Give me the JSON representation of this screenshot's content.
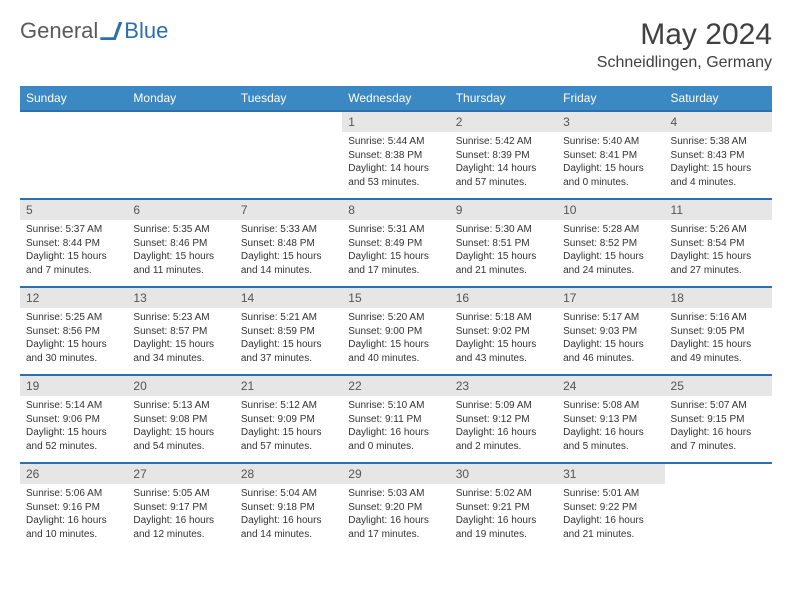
{
  "logo": {
    "general": "General",
    "blue": "Blue"
  },
  "title": "May 2024",
  "location": "Schneidlingen, Germany",
  "colors": {
    "header_bg": "#3b88c3",
    "header_text": "#ffffff",
    "border": "#2b6fad",
    "daynum_bg": "#e6e6e6",
    "text": "#333333"
  },
  "weekdays": [
    "Sunday",
    "Monday",
    "Tuesday",
    "Wednesday",
    "Thursday",
    "Friday",
    "Saturday"
  ],
  "weeks": [
    [
      {
        "n": "",
        "t": ""
      },
      {
        "n": "",
        "t": ""
      },
      {
        "n": "",
        "t": ""
      },
      {
        "n": "1",
        "t": "Sunrise: 5:44 AM\nSunset: 8:38 PM\nDaylight: 14 hours and 53 minutes."
      },
      {
        "n": "2",
        "t": "Sunrise: 5:42 AM\nSunset: 8:39 PM\nDaylight: 14 hours and 57 minutes."
      },
      {
        "n": "3",
        "t": "Sunrise: 5:40 AM\nSunset: 8:41 PM\nDaylight: 15 hours and 0 minutes."
      },
      {
        "n": "4",
        "t": "Sunrise: 5:38 AM\nSunset: 8:43 PM\nDaylight: 15 hours and 4 minutes."
      }
    ],
    [
      {
        "n": "5",
        "t": "Sunrise: 5:37 AM\nSunset: 8:44 PM\nDaylight: 15 hours and 7 minutes."
      },
      {
        "n": "6",
        "t": "Sunrise: 5:35 AM\nSunset: 8:46 PM\nDaylight: 15 hours and 11 minutes."
      },
      {
        "n": "7",
        "t": "Sunrise: 5:33 AM\nSunset: 8:48 PM\nDaylight: 15 hours and 14 minutes."
      },
      {
        "n": "8",
        "t": "Sunrise: 5:31 AM\nSunset: 8:49 PM\nDaylight: 15 hours and 17 minutes."
      },
      {
        "n": "9",
        "t": "Sunrise: 5:30 AM\nSunset: 8:51 PM\nDaylight: 15 hours and 21 minutes."
      },
      {
        "n": "10",
        "t": "Sunrise: 5:28 AM\nSunset: 8:52 PM\nDaylight: 15 hours and 24 minutes."
      },
      {
        "n": "11",
        "t": "Sunrise: 5:26 AM\nSunset: 8:54 PM\nDaylight: 15 hours and 27 minutes."
      }
    ],
    [
      {
        "n": "12",
        "t": "Sunrise: 5:25 AM\nSunset: 8:56 PM\nDaylight: 15 hours and 30 minutes."
      },
      {
        "n": "13",
        "t": "Sunrise: 5:23 AM\nSunset: 8:57 PM\nDaylight: 15 hours and 34 minutes."
      },
      {
        "n": "14",
        "t": "Sunrise: 5:21 AM\nSunset: 8:59 PM\nDaylight: 15 hours and 37 minutes."
      },
      {
        "n": "15",
        "t": "Sunrise: 5:20 AM\nSunset: 9:00 PM\nDaylight: 15 hours and 40 minutes."
      },
      {
        "n": "16",
        "t": "Sunrise: 5:18 AM\nSunset: 9:02 PM\nDaylight: 15 hours and 43 minutes."
      },
      {
        "n": "17",
        "t": "Sunrise: 5:17 AM\nSunset: 9:03 PM\nDaylight: 15 hours and 46 minutes."
      },
      {
        "n": "18",
        "t": "Sunrise: 5:16 AM\nSunset: 9:05 PM\nDaylight: 15 hours and 49 minutes."
      }
    ],
    [
      {
        "n": "19",
        "t": "Sunrise: 5:14 AM\nSunset: 9:06 PM\nDaylight: 15 hours and 52 minutes."
      },
      {
        "n": "20",
        "t": "Sunrise: 5:13 AM\nSunset: 9:08 PM\nDaylight: 15 hours and 54 minutes."
      },
      {
        "n": "21",
        "t": "Sunrise: 5:12 AM\nSunset: 9:09 PM\nDaylight: 15 hours and 57 minutes."
      },
      {
        "n": "22",
        "t": "Sunrise: 5:10 AM\nSunset: 9:11 PM\nDaylight: 16 hours and 0 minutes."
      },
      {
        "n": "23",
        "t": "Sunrise: 5:09 AM\nSunset: 9:12 PM\nDaylight: 16 hours and 2 minutes."
      },
      {
        "n": "24",
        "t": "Sunrise: 5:08 AM\nSunset: 9:13 PM\nDaylight: 16 hours and 5 minutes."
      },
      {
        "n": "25",
        "t": "Sunrise: 5:07 AM\nSunset: 9:15 PM\nDaylight: 16 hours and 7 minutes."
      }
    ],
    [
      {
        "n": "26",
        "t": "Sunrise: 5:06 AM\nSunset: 9:16 PM\nDaylight: 16 hours and 10 minutes."
      },
      {
        "n": "27",
        "t": "Sunrise: 5:05 AM\nSunset: 9:17 PM\nDaylight: 16 hours and 12 minutes."
      },
      {
        "n": "28",
        "t": "Sunrise: 5:04 AM\nSunset: 9:18 PM\nDaylight: 16 hours and 14 minutes."
      },
      {
        "n": "29",
        "t": "Sunrise: 5:03 AM\nSunset: 9:20 PM\nDaylight: 16 hours and 17 minutes."
      },
      {
        "n": "30",
        "t": "Sunrise: 5:02 AM\nSunset: 9:21 PM\nDaylight: 16 hours and 19 minutes."
      },
      {
        "n": "31",
        "t": "Sunrise: 5:01 AM\nSunset: 9:22 PM\nDaylight: 16 hours and 21 minutes."
      },
      {
        "n": "",
        "t": ""
      }
    ]
  ]
}
